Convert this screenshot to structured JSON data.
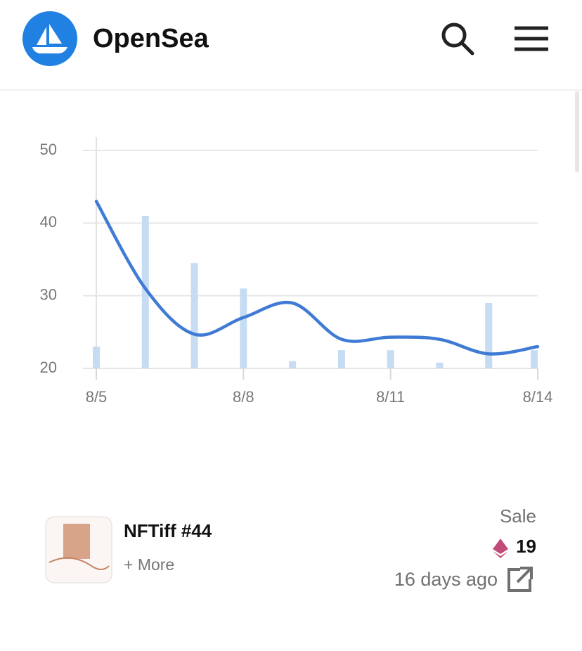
{
  "header": {
    "brand": "OpenSea"
  },
  "chart_data": {
    "type": "bar-line",
    "categories": [
      "8/5",
      null,
      null,
      "8/8",
      null,
      null,
      "8/11",
      null,
      null,
      "8/14"
    ],
    "series": [
      {
        "type": "bar",
        "color": "#c6dcf3",
        "values": [
          23,
          41,
          34.5,
          31,
          21,
          22.5,
          22.5,
          20.8,
          29,
          22.5
        ]
      },
      {
        "type": "line",
        "color": "#3f7bd4",
        "values": [
          43,
          31,
          24.7,
          27,
          29,
          24,
          24.3,
          24,
          22,
          23
        ]
      }
    ],
    "ylim": [
      20,
      50
    ],
    "yticks": [
      20,
      30,
      40,
      50
    ],
    "grid": true
  },
  "item": {
    "name": "NFTiff #44",
    "more": "+ More",
    "event": "Sale",
    "price": 19,
    "time": "16 days ago"
  }
}
